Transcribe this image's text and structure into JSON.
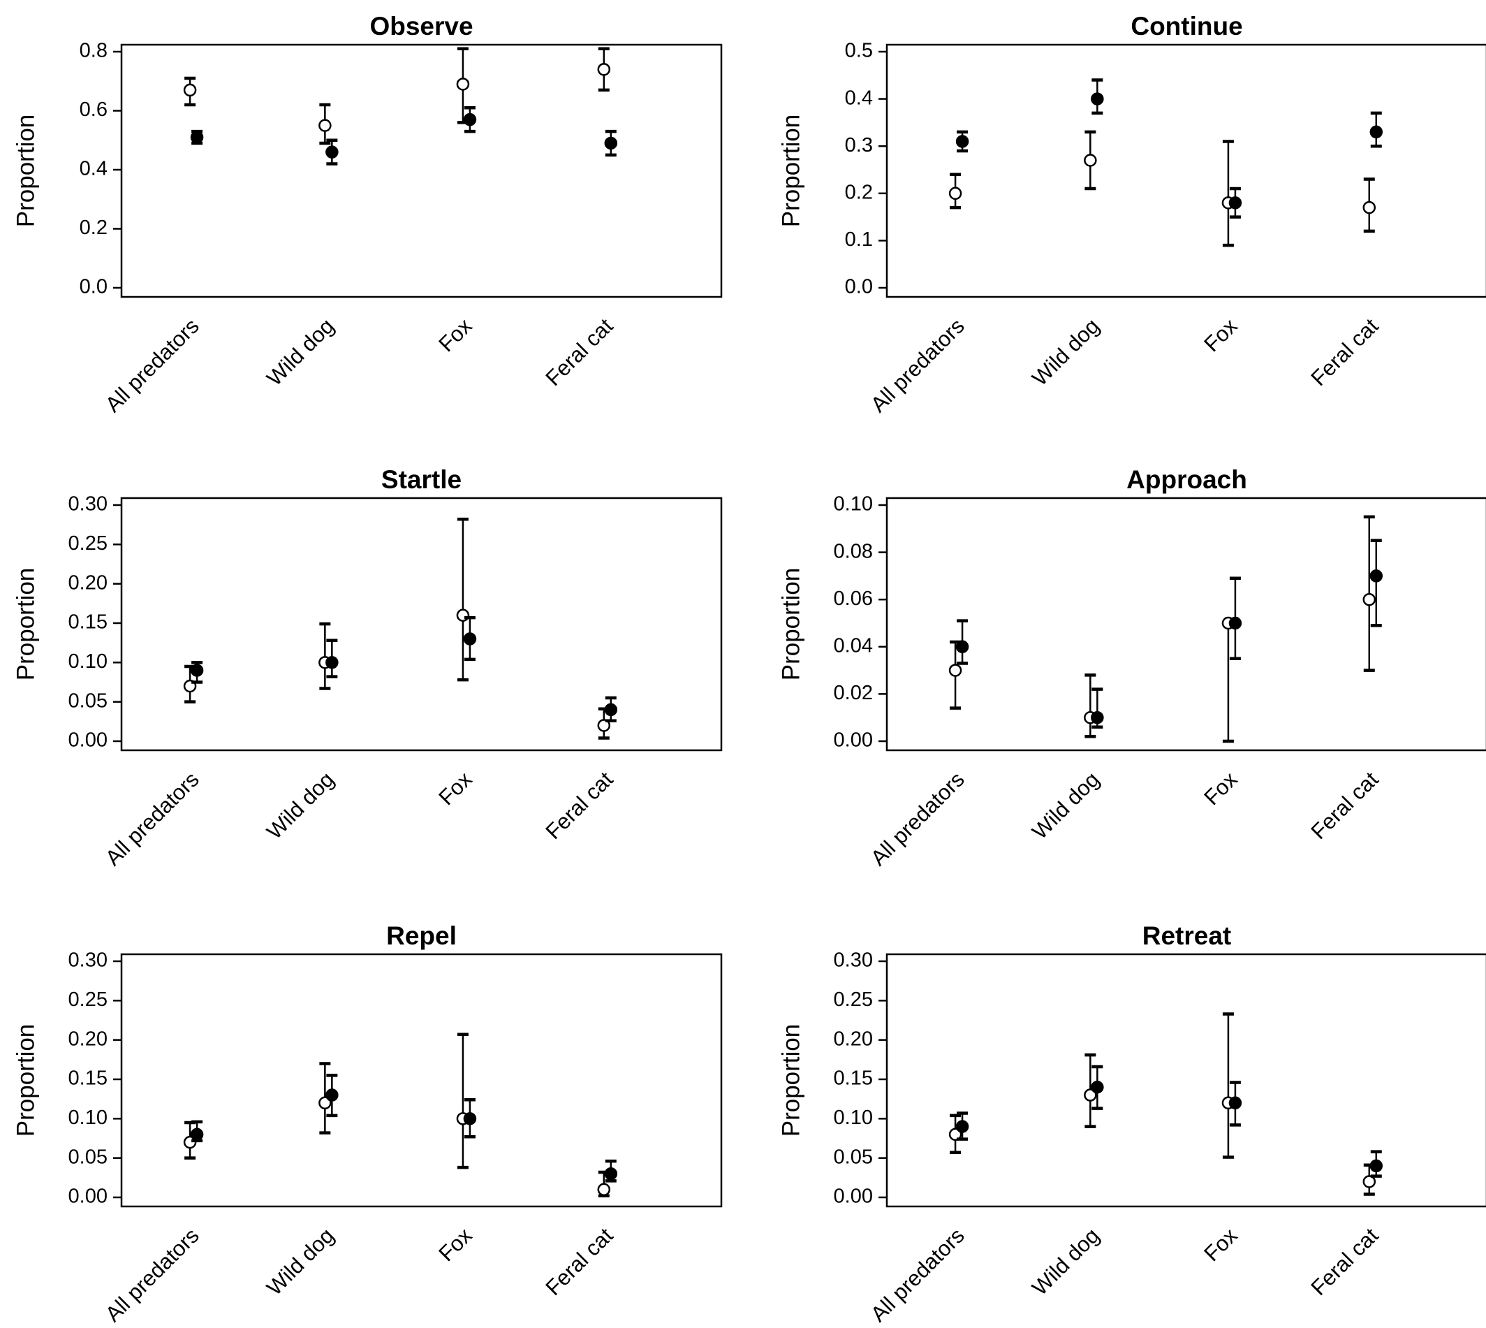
{
  "chart_data": [
    {
      "type": "scatter",
      "title": "Observe",
      "ylabel": "Proportion",
      "categories": [
        "All predators",
        "Wild dog",
        "Fox",
        "Feral cat"
      ],
      "ylim": [
        0,
        0.8
      ],
      "yticks": [
        "0.0",
        "0.2",
        "0.4",
        "0.6",
        "0.8"
      ],
      "series": [
        {
          "marker": "open-circle",
          "values": [
            0.67,
            0.55,
            0.69,
            0.74
          ],
          "lower": [
            0.62,
            0.49,
            0.56,
            0.67
          ],
          "upper": [
            0.71,
            0.62,
            0.81,
            0.81
          ]
        },
        {
          "marker": "filled-circle",
          "values": [
            0.51,
            0.46,
            0.57,
            0.49
          ],
          "lower": [
            0.49,
            0.42,
            0.53,
            0.45
          ],
          "upper": [
            0.53,
            0.5,
            0.61,
            0.53
          ]
        }
      ]
    },
    {
      "type": "scatter",
      "title": "Continue",
      "ylabel": "Proportion",
      "categories": [
        "All predators",
        "Wild dog",
        "Fox",
        "Feral cat"
      ],
      "ylim": [
        0,
        0.5
      ],
      "yticks": [
        "0.0",
        "0.1",
        "0.2",
        "0.3",
        "0.4",
        "0.5"
      ],
      "series": [
        {
          "marker": "open-circle",
          "values": [
            0.2,
            0.27,
            0.18,
            0.17
          ],
          "lower": [
            0.17,
            0.21,
            0.09,
            0.12
          ],
          "upper": [
            0.24,
            0.33,
            0.31,
            0.23
          ]
        },
        {
          "marker": "filled-circle",
          "values": [
            0.31,
            0.4,
            0.18,
            0.33
          ],
          "lower": [
            0.29,
            0.37,
            0.15,
            0.3
          ],
          "upper": [
            0.33,
            0.44,
            0.21,
            0.37
          ]
        }
      ]
    },
    {
      "type": "scatter",
      "title": "Startle",
      "ylabel": "Proportion",
      "categories": [
        "All predators",
        "Wild dog",
        "Fox",
        "Feral cat"
      ],
      "ylim": [
        0,
        0.3
      ],
      "yticks": [
        "0.00",
        "0.05",
        "0.10",
        "0.15",
        "0.20",
        "0.25",
        "0.30"
      ],
      "series": [
        {
          "marker": "open-circle",
          "values": [
            0.07,
            0.1,
            0.16,
            0.02
          ],
          "lower": [
            0.05,
            0.067,
            0.078,
            0.004
          ],
          "upper": [
            0.095,
            0.149,
            0.282,
            0.041
          ]
        },
        {
          "marker": "filled-circle",
          "values": [
            0.09,
            0.1,
            0.13,
            0.04
          ],
          "lower": [
            0.075,
            0.082,
            0.104,
            0.026
          ],
          "upper": [
            0.1,
            0.128,
            0.157,
            0.055
          ]
        }
      ]
    },
    {
      "type": "scatter",
      "title": "Approach",
      "ylabel": "Proportion",
      "categories": [
        "All predators",
        "Wild dog",
        "Fox",
        "Feral cat"
      ],
      "ylim": [
        0,
        0.1
      ],
      "yticks": [
        "0.00",
        "0.02",
        "0.04",
        "0.06",
        "0.08",
        "0.10"
      ],
      "series": [
        {
          "marker": "open-circle",
          "values": [
            0.03,
            0.01,
            0.05,
            0.06
          ],
          "lower": [
            0.014,
            0.002,
            0.0,
            0.03
          ],
          "upper": [
            0.042,
            0.028,
            0.05,
            0.095
          ]
        },
        {
          "marker": "filled-circle",
          "values": [
            0.04,
            0.01,
            0.05,
            0.07
          ],
          "lower": [
            0.033,
            0.006,
            0.035,
            0.049
          ],
          "upper": [
            0.051,
            0.022,
            0.069,
            0.085
          ]
        }
      ]
    },
    {
      "type": "scatter",
      "title": "Repel",
      "ylabel": "Proportion",
      "categories": [
        "All predators",
        "Wild dog",
        "Fox",
        "Feral cat"
      ],
      "ylim": [
        0,
        0.3
      ],
      "yticks": [
        "0.00",
        "0.05",
        "0.10",
        "0.15",
        "0.20",
        "0.25",
        "0.30"
      ],
      "series": [
        {
          "marker": "open-circle",
          "values": [
            0.07,
            0.12,
            0.1,
            0.01
          ],
          "lower": [
            0.05,
            0.082,
            0.038,
            0.002
          ],
          "upper": [
            0.095,
            0.17,
            0.207,
            0.032
          ]
        },
        {
          "marker": "filled-circle",
          "values": [
            0.08,
            0.13,
            0.1,
            0.03
          ],
          "lower": [
            0.072,
            0.104,
            0.077,
            0.021
          ],
          "upper": [
            0.096,
            0.155,
            0.124,
            0.046
          ]
        }
      ]
    },
    {
      "type": "scatter",
      "title": "Retreat",
      "ylabel": "Proportion",
      "categories": [
        "All predators",
        "Wild dog",
        "Fox",
        "Feral cat"
      ],
      "ylim": [
        0,
        0.3
      ],
      "yticks": [
        "0.00",
        "0.05",
        "0.10",
        "0.15",
        "0.20",
        "0.25",
        "0.30"
      ],
      "series": [
        {
          "marker": "open-circle",
          "values": [
            0.08,
            0.13,
            0.12,
            0.02
          ],
          "lower": [
            0.057,
            0.09,
            0.051,
            0.004
          ],
          "upper": [
            0.104,
            0.181,
            0.233,
            0.041
          ]
        },
        {
          "marker": "filled-circle",
          "values": [
            0.09,
            0.14,
            0.12,
            0.04
          ],
          "lower": [
            0.074,
            0.113,
            0.092,
            0.027
          ],
          "upper": [
            0.107,
            0.166,
            0.146,
            0.058
          ]
        }
      ]
    }
  ]
}
